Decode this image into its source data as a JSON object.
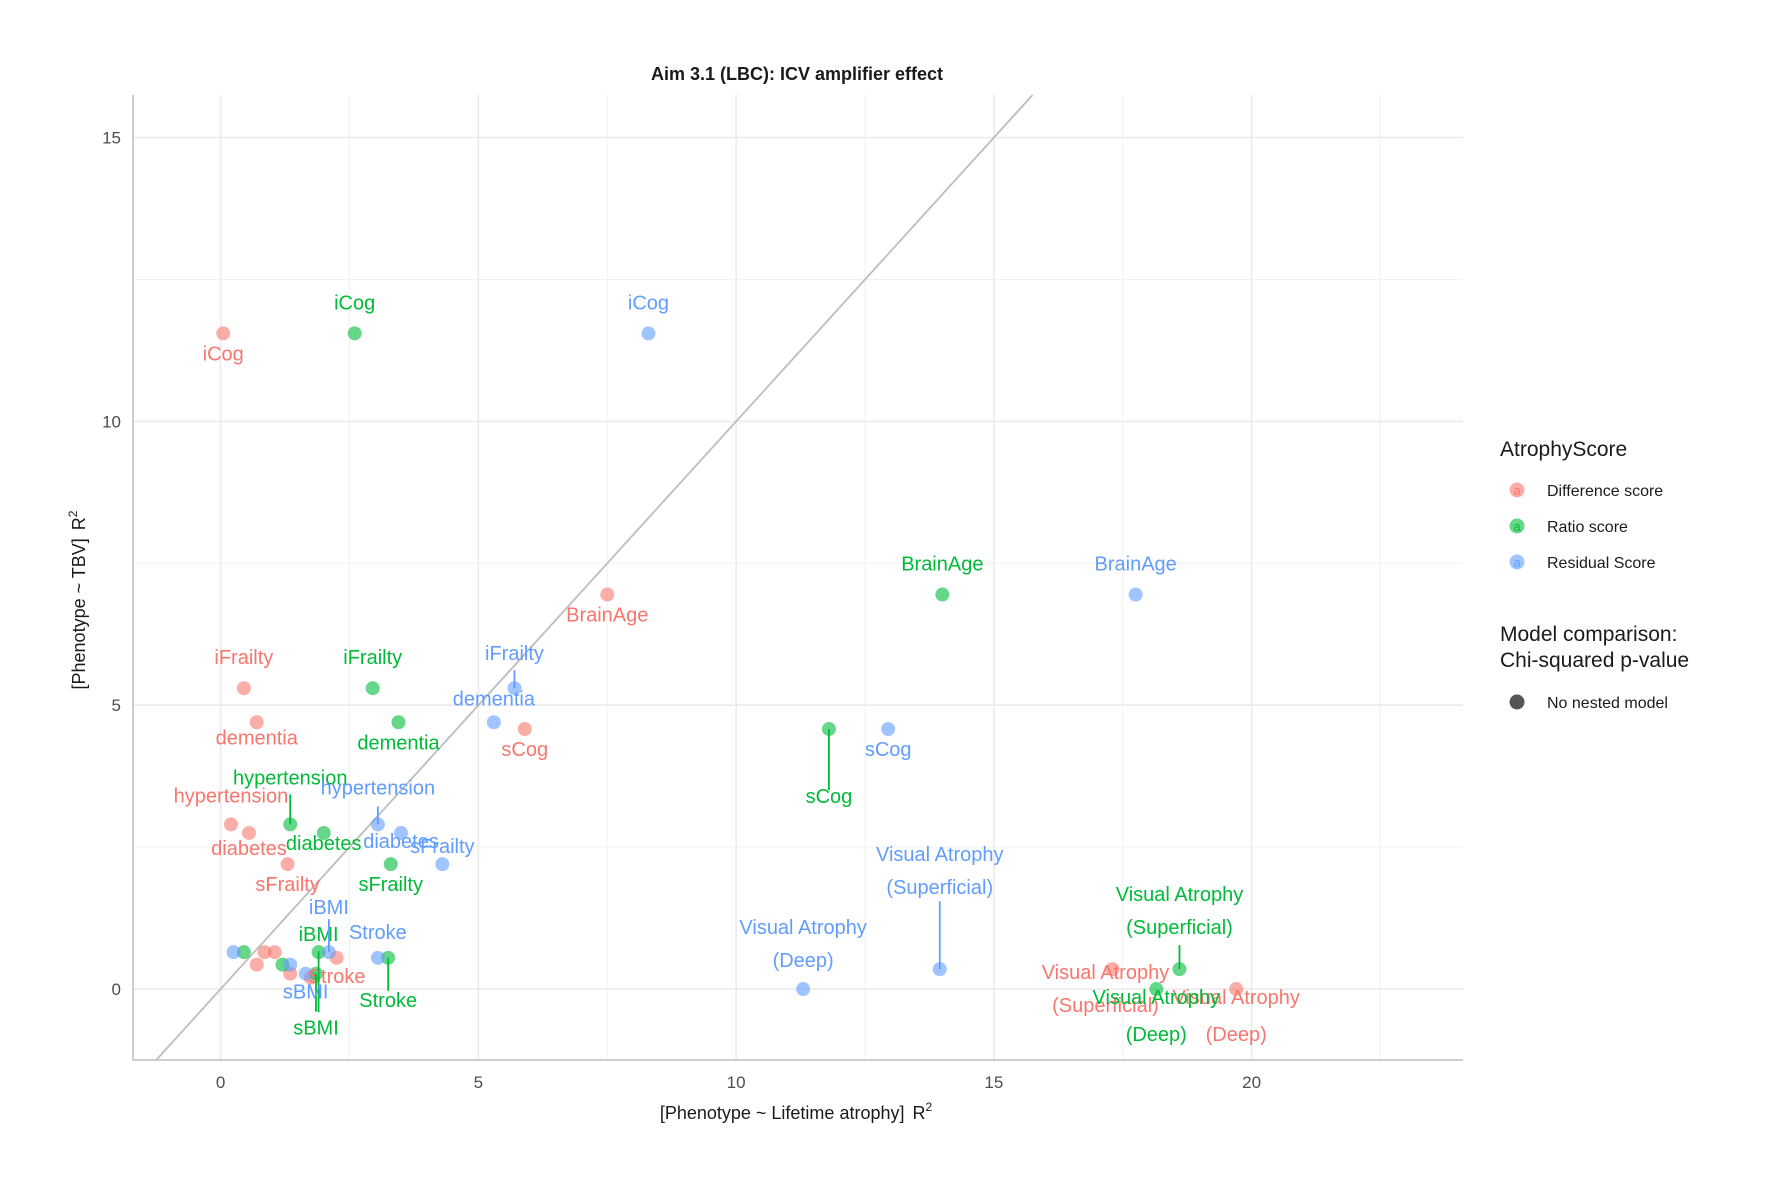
{
  "chart_data": {
    "type": "scatter",
    "title": "Aim 3.1 (LBC): ICV amplifier effect",
    "xlabel": "[Phenotype ~ Lifetime atrophy]",
    "ylabel": "[Phenotype ~ TBV]",
    "axis_superscript": "R",
    "axis_superscript_exp": "2",
    "xlim": [
      -1.7,
      24.1
    ],
    "ylim": [
      -1.25,
      15.75
    ],
    "xticks": [
      0,
      5,
      10,
      15,
      20
    ],
    "yticks": [
      0,
      5,
      10,
      15
    ],
    "reference_line": "y = x",
    "colors": {
      "Difference score": "#F8766D",
      "Ratio score": "#00BA38",
      "Residual Score": "#619CFF",
      "reference_line": "#bdbdbd",
      "grid": "#ebebeb"
    },
    "legend": {
      "title": "AtrophyScore",
      "entries": [
        "Difference score",
        "Ratio score",
        "Residual Score"
      ],
      "key_glyph": "a",
      "size_title_line1": "Model comparison:",
      "size_title_line2": "Chi-squared p-value",
      "size_entry": "No nested model",
      "placement": "right"
    },
    "series": [
      {
        "name": "Difference score",
        "points": [
          {
            "x": 0.05,
            "y": 11.55,
            "label": "iCog"
          },
          {
            "x": 7.5,
            "y": 6.95,
            "label": "BrainAge"
          },
          {
            "x": 0.45,
            "y": 5.3,
            "label": "iFrailty"
          },
          {
            "x": 0.7,
            "y": 4.7,
            "label": "dementia"
          },
          {
            "x": 5.9,
            "y": 4.58,
            "label": "sCog"
          },
          {
            "x": 0.2,
            "y": 2.9,
            "label": "hypertension"
          },
          {
            "x": 0.55,
            "y": 2.75,
            "label": "diabetes"
          },
          {
            "x": 1.3,
            "y": 2.2,
            "label": "sFrailty"
          },
          {
            "x": 0.85,
            "y": 0.65,
            "label": ""
          },
          {
            "x": 1.05,
            "y": 0.65,
            "label": ""
          },
          {
            "x": 0.7,
            "y": 0.43,
            "label": ""
          },
          {
            "x": 1.35,
            "y": 0.27,
            "label": ""
          },
          {
            "x": 1.75,
            "y": 0.2,
            "label": ""
          },
          {
            "x": 2.25,
            "y": 0.55,
            "label": "Stroke"
          },
          {
            "x": 17.3,
            "y": 0.35,
            "label": "Visual Atrophy (Superficial)"
          },
          {
            "x": 19.7,
            "y": 0.0,
            "label": "Visual Atrophy (Deep)"
          }
        ]
      },
      {
        "name": "Ratio score",
        "points": [
          {
            "x": 2.6,
            "y": 11.55,
            "label": "iCog"
          },
          {
            "x": 14.0,
            "y": 6.95,
            "label": "BrainAge"
          },
          {
            "x": 2.95,
            "y": 5.3,
            "label": "iFrailty"
          },
          {
            "x": 3.45,
            "y": 4.7,
            "label": "dementia"
          },
          {
            "x": 11.8,
            "y": 4.58,
            "label": "sCog"
          },
          {
            "x": 1.35,
            "y": 2.9,
            "label": "hypertension"
          },
          {
            "x": 2.0,
            "y": 2.75,
            "label": "diabetes"
          },
          {
            "x": 3.3,
            "y": 2.2,
            "label": "sFrailty"
          },
          {
            "x": 0.45,
            "y": 0.65,
            "label": ""
          },
          {
            "x": 1.9,
            "y": 0.65,
            "label": "iBMI"
          },
          {
            "x": 1.2,
            "y": 0.43,
            "label": ""
          },
          {
            "x": 1.85,
            "y": 0.27,
            "label": "sBMI"
          },
          {
            "x": 3.25,
            "y": 0.55,
            "label": "Stroke"
          },
          {
            "x": 18.6,
            "y": 0.35,
            "label": "Visual Atrophy (Superficial)"
          },
          {
            "x": 18.15,
            "y": 0.0,
            "label": "Visual Atrophy (Deep)"
          }
        ]
      },
      {
        "name": "Residual Score",
        "points": [
          {
            "x": 8.3,
            "y": 11.55,
            "label": "iCog"
          },
          {
            "x": 17.75,
            "y": 6.95,
            "label": "BrainAge"
          },
          {
            "x": 5.7,
            "y": 5.3,
            "label": "iFrailty"
          },
          {
            "x": 5.3,
            "y": 4.7,
            "label": "dementia"
          },
          {
            "x": 12.95,
            "y": 4.58,
            "label": "sCog"
          },
          {
            "x": 3.05,
            "y": 2.9,
            "label": "hypertension"
          },
          {
            "x": 3.5,
            "y": 2.75,
            "label": "diabetes"
          },
          {
            "x": 4.3,
            "y": 2.2,
            "label": "sFrailty"
          },
          {
            "x": 0.25,
            "y": 0.65,
            "label": ""
          },
          {
            "x": 2.1,
            "y": 0.65,
            "label": "iBMI"
          },
          {
            "x": 1.35,
            "y": 0.43,
            "label": ""
          },
          {
            "x": 1.65,
            "y": 0.27,
            "label": "sBMI"
          },
          {
            "x": 3.05,
            "y": 0.55,
            "label": "Stroke"
          },
          {
            "x": 13.95,
            "y": 0.35,
            "label": "Visual Atrophy (Superficial)"
          },
          {
            "x": 11.3,
            "y": 0.0,
            "label": "Visual Atrophy (Deep)"
          }
        ]
      }
    ]
  }
}
